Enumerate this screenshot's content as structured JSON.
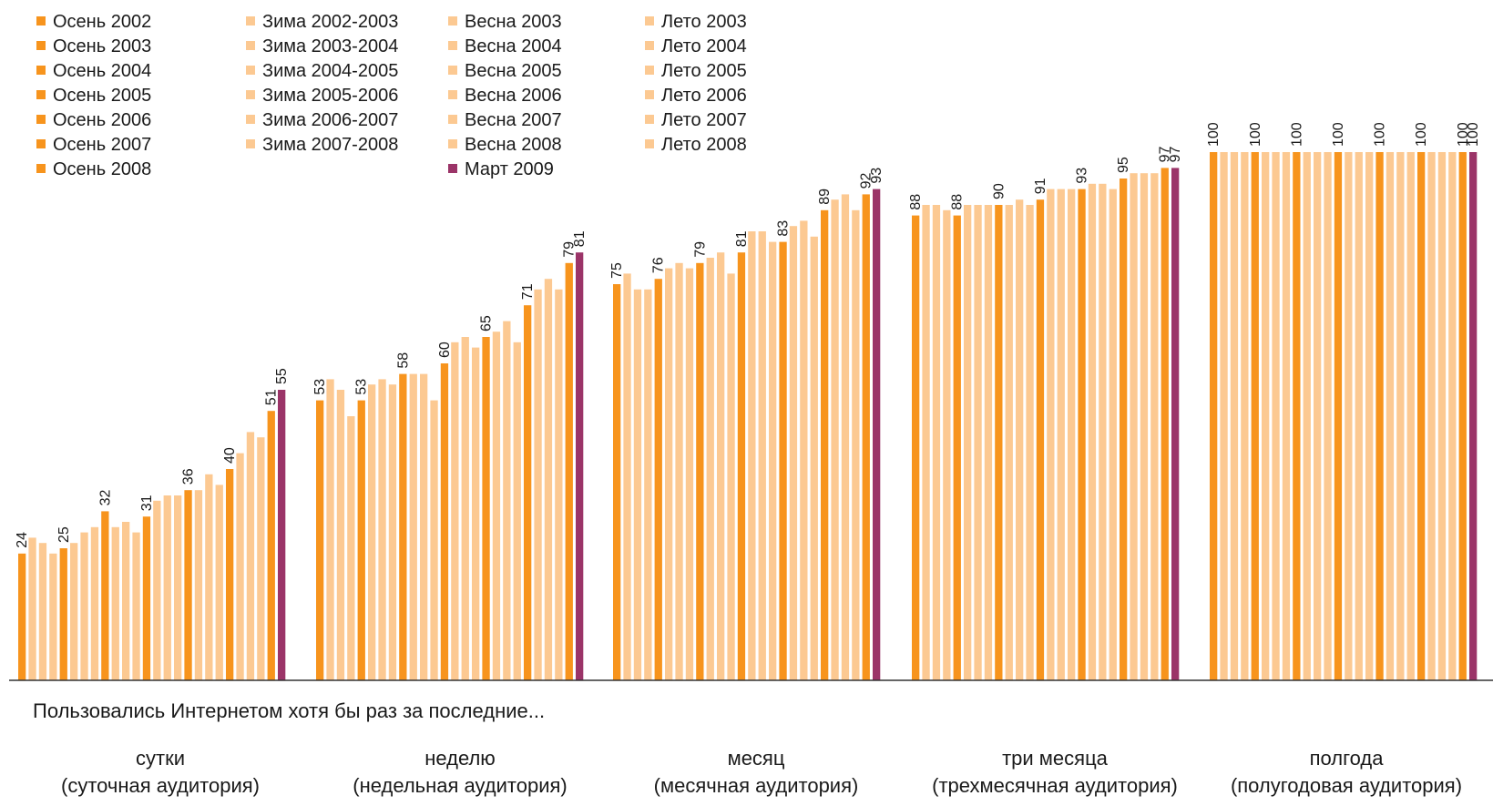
{
  "legend": {
    "columns": [
      [
        {
          "label": "Осень 2002",
          "kind": "autumn"
        },
        {
          "label": "Осень 2003",
          "kind": "autumn"
        },
        {
          "label": "Осень 2004",
          "kind": "autumn"
        },
        {
          "label": "Осень 2005",
          "kind": "autumn"
        },
        {
          "label": "Осень 2006",
          "kind": "autumn"
        },
        {
          "label": "Осень 2007",
          "kind": "autumn"
        },
        {
          "label": "Осень 2008",
          "kind": "autumn"
        }
      ],
      [
        {
          "label": "Зима 2002-2003",
          "kind": "other"
        },
        {
          "label": "Зима 2003-2004",
          "kind": "other"
        },
        {
          "label": "Зима 2004-2005",
          "kind": "other"
        },
        {
          "label": "Зима 2005-2006",
          "kind": "other"
        },
        {
          "label": "Зима 2006-2007",
          "kind": "other"
        },
        {
          "label": "Зима 2007-2008",
          "kind": "other"
        }
      ],
      [
        {
          "label": "Весна 2003",
          "kind": "other"
        },
        {
          "label": "Весна 2004",
          "kind": "other"
        },
        {
          "label": "Весна 2005",
          "kind": "other"
        },
        {
          "label": "Весна 2006",
          "kind": "other"
        },
        {
          "label": "Весна 2007",
          "kind": "other"
        },
        {
          "label": "Весна 2008",
          "kind": "other"
        },
        {
          "label": "Март 2009",
          "kind": "march"
        }
      ],
      [
        {
          "label": "Лето 2003",
          "kind": "other"
        },
        {
          "label": "Лето 2004",
          "kind": "other"
        },
        {
          "label": "Лето 2005",
          "kind": "other"
        },
        {
          "label": "Лето 2006",
          "kind": "other"
        },
        {
          "label": "Лето 2007",
          "kind": "other"
        },
        {
          "label": "Лето 2008",
          "kind": "other"
        }
      ]
    ]
  },
  "colors": {
    "autumn": "#f7941d",
    "other": "#fcc992",
    "march": "#9b3468",
    "axis": "#333333"
  },
  "caption": "Пользовались Интернетом хотя бы раз за последние...",
  "chart_data": {
    "type": "bar",
    "ylim": [
      0,
      100
    ],
    "grid": false,
    "legend_position": "top-left",
    "season_order": [
      "Осень 2002",
      "Зима 2002-2003",
      "Весна 2003",
      "Лето 2003",
      "Осень 2003",
      "Зима 2003-2004",
      "Весна 2004",
      "Лето 2004",
      "Осень 2004",
      "Зима 2004-2005",
      "Весна 2005",
      "Лето 2005",
      "Осень 2005",
      "Зима 2005-2006",
      "Весна 2006",
      "Лето 2006",
      "Осень 2006",
      "Зима 2006-2007",
      "Весна 2007",
      "Лето 2007",
      "Осень 2007",
      "Зима 2007-2008",
      "Весна 2008",
      "Лето 2008",
      "Осень 2008",
      "Март 2009"
    ],
    "kinds": [
      "autumn",
      "other",
      "other",
      "other",
      "autumn",
      "other",
      "other",
      "other",
      "autumn",
      "other",
      "other",
      "other",
      "autumn",
      "other",
      "other",
      "other",
      "autumn",
      "other",
      "other",
      "other",
      "autumn",
      "other",
      "other",
      "other",
      "autumn",
      "march"
    ],
    "groups": [
      {
        "name": "сутки",
        "subtitle": "(суточная аудитория)",
        "values": [
          24,
          27,
          26,
          24,
          25,
          26,
          28,
          29,
          32,
          29,
          30,
          28,
          31,
          34,
          35,
          35,
          36,
          36,
          39,
          37,
          40,
          43,
          47,
          46,
          51,
          55
        ],
        "labeled": [
          24,
          25,
          32,
          31,
          36,
          40,
          51,
          55
        ]
      },
      {
        "name": "неделю",
        "subtitle": "(недельная аудитория)",
        "values": [
          53,
          57,
          55,
          50,
          53,
          56,
          57,
          56,
          58,
          58,
          58,
          53,
          60,
          64,
          65,
          63,
          65,
          66,
          68,
          64,
          71,
          74,
          76,
          74,
          79,
          81
        ],
        "labeled": [
          53,
          53,
          58,
          60,
          65,
          71,
          79,
          81
        ]
      },
      {
        "name": "месяц",
        "subtitle": "(месячная аудитория)",
        "values": [
          75,
          77,
          74,
          74,
          76,
          78,
          79,
          78,
          79,
          80,
          81,
          77,
          81,
          85,
          85,
          83,
          83,
          86,
          87,
          84,
          89,
          91,
          92,
          89,
          92,
          93
        ],
        "labeled": [
          75,
          76,
          79,
          81,
          83,
          89,
          92,
          93
        ]
      },
      {
        "name": "три месяца",
        "subtitle": "(трехмесячная аудитория)",
        "values": [
          88,
          90,
          90,
          89,
          88,
          90,
          90,
          90,
          90,
          90,
          91,
          90,
          91,
          93,
          93,
          93,
          93,
          94,
          94,
          93,
          95,
          96,
          96,
          96,
          97,
          97
        ],
        "labeled": [
          88,
          88,
          90,
          91,
          93,
          95,
          97,
          97
        ]
      },
      {
        "name": "полгода",
        "subtitle": "(полугодовая аудитория)",
        "values": [
          100,
          100,
          100,
          100,
          100,
          100,
          100,
          100,
          100,
          100,
          100,
          100,
          100,
          100,
          100,
          100,
          100,
          100,
          100,
          100,
          100,
          100,
          100,
          100,
          100,
          100
        ],
        "labeled": [
          100,
          100,
          100,
          100,
          100,
          100,
          100,
          100
        ]
      }
    ]
  }
}
